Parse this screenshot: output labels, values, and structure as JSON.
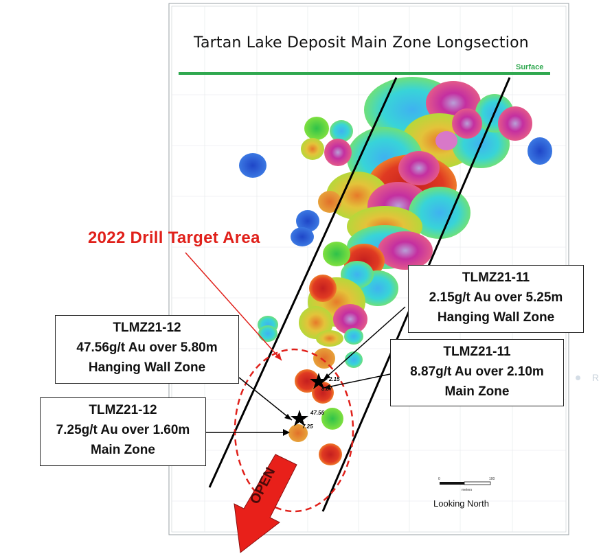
{
  "title": "Tartan Lake Deposit Main Zone Longsection",
  "surface_label": "Surface",
  "target_label": "2022  Drill Target Area",
  "open_label": "OPEN",
  "looking_label": "Looking North",
  "scale": {
    "start": "0",
    "end": "100",
    "unit": "meters"
  },
  "edge_label": "R",
  "star_labels": {
    "a": "2.15",
    "b": "8.87",
    "c": "47.56",
    "d": "7.25"
  },
  "callouts": [
    {
      "id": "tlmz21-11-hw",
      "lines": [
        "TLMZ21-11",
        "2.15g/t Au over 5.25m",
        "Hanging Wall Zone"
      ]
    },
    {
      "id": "tlmz21-12-hw",
      "lines": [
        "TLMZ21-12",
        "47.56g/t Au over 5.80m",
        "Hanging Wall Zone"
      ]
    },
    {
      "id": "tlmz21-11-mz",
      "lines": [
        "TLMZ21-11",
        "8.87g/t Au over 2.10m",
        "Main Zone"
      ]
    },
    {
      "id": "tlmz21-12-mz",
      "lines": [
        "TLMZ21-12",
        "7.25g/t Au over 1.60m",
        "Main Zone"
      ]
    }
  ],
  "colors": {
    "surface": "#2fa84f",
    "target": "#e0201a",
    "arrow": "#e8201a",
    "blue": "#2f5fd8",
    "cyan": "#33c3e6",
    "green": "#4fd33a",
    "yellow": "#e4d23a",
    "orange": "#e38a2b",
    "red": "#d9281f",
    "magenta": "#c42fa0"
  }
}
